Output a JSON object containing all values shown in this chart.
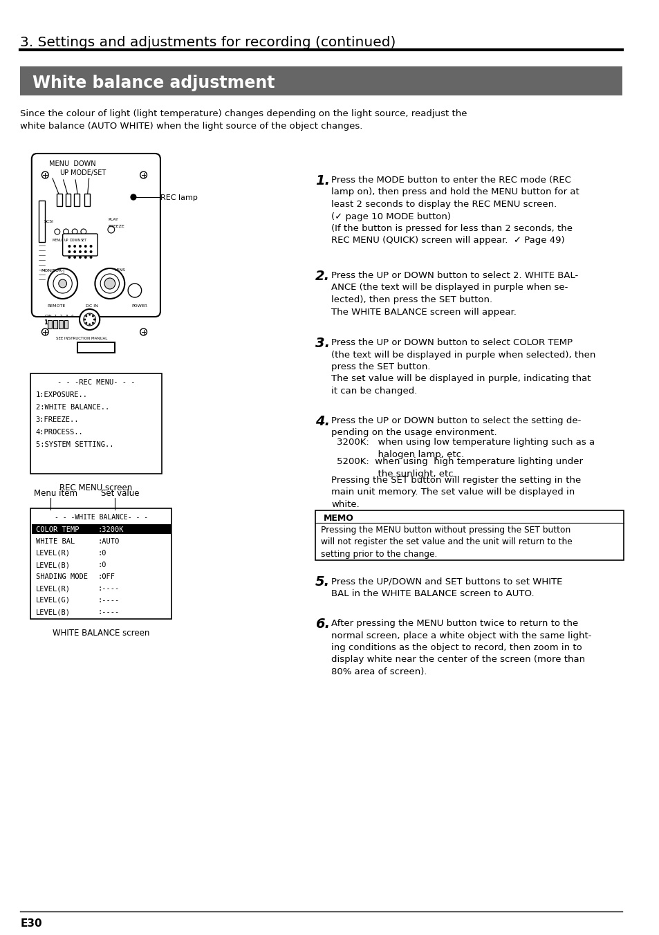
{
  "page_bg": "#ffffff",
  "header_text": "3. Settings and adjustments for recording (continued)",
  "header_line_color": "#000000",
  "title_bg": "#666666",
  "title_text": "White balance adjustment",
  "title_text_color": "#ffffff",
  "intro_text": "Since the colour of light (light temperature) changes depending on the light source, readjust the\nwhite balance (AUTO WHITE) when the light source of the object changes.",
  "step1_num": "1.",
  "step1_text": "Press the MODE button to enter the REC mode (REC\nlamp on), then press and hold the MENU button for at\nleast 2 seconds to display the REC MENU screen.\n(✓ page 10 MODE button)\n(If the button is pressed for less than 2 seconds, the\nREC MENU (QUICK) screen will appear.  ✓ Page 49)",
  "step2_num": "2.",
  "step2_text": "Press the UP or DOWN button to select 2. WHITE BAL-\nANCE (the text will be displayed in purple when se-\nlected), then press the SET button.\nThe WHITE BALANCE screen will appear.",
  "step3_num": "3.",
  "step3_text": "Press the UP or DOWN button to select COLOR TEMP\n(the text will be displayed in purple when selected), then\npress the SET button.\nThe set value will be displayed in purple, indicating that\nit can be changed.",
  "step4_num": "4.",
  "step4_text": "Press the UP or DOWN button to select the setting de-\npending on the usage environment.",
  "step4_sub1": "3200K:   when using low temperature lighting such as a\n              halogen lamp, etc.",
  "step4_sub2": "5200K:  when using  high temperature lighting under\n              the sunlight, etc.",
  "step4_cont": "Pressing the SET button will register the setting in the\nmain unit memory. The set value will be displayed in\nwhite.",
  "memo_title": "MEMO",
  "memo_text": "Pressing the MENU button without pressing the SET button\nwill not register the set value and the unit will return to the\nsetting prior to the change.",
  "step5_num": "5.",
  "step5_text": "Press the UP/DOWN and SET buttons to set WHITE\nBAL in the WHITE BALANCE screen to AUTO.",
  "step6_num": "6.",
  "step6_text": "After pressing the MENU button twice to return to the\nnormal screen, place a white object with the same light-\ning conditions as the object to record, then zoom in to\ndisplay white near the center of the screen (more than\n80% area of screen).",
  "footer_text": "E30",
  "rec_lamp_label": "REC lamp",
  "rec_menu_title": "- - -REC MENU- - -",
  "rec_menu_items": [
    "1:EXPOSURE..",
    "2:WHITE BALANCE..",
    "3:FREEZE..",
    "4:PROCESS..",
    "5:SYSTEM SETTING.."
  ],
  "rec_menu_caption": "REC MENU screen",
  "wb_menu_title": "- - -WHITE BALANCE- - -",
  "wb_menu_items": [
    [
      "COLOR TEMP",
      ":3200K"
    ],
    [
      "WHITE BAL",
      ":AUTO"
    ],
    [
      "LEVEL(R)",
      ":0"
    ],
    [
      "LEVEL(B)",
      ":0"
    ],
    [
      "SHADING MODE",
      ":OFF"
    ],
    [
      "LEVEL(R)",
      ":----"
    ],
    [
      "LEVEL(G)",
      ":----"
    ],
    [
      "LEVEL(B)",
      ":----"
    ]
  ],
  "wb_highlight_row": 0,
  "wb_caption": "WHITE BALANCE screen",
  "menu_item_label": "Menu item",
  "set_value_label": "Set value"
}
